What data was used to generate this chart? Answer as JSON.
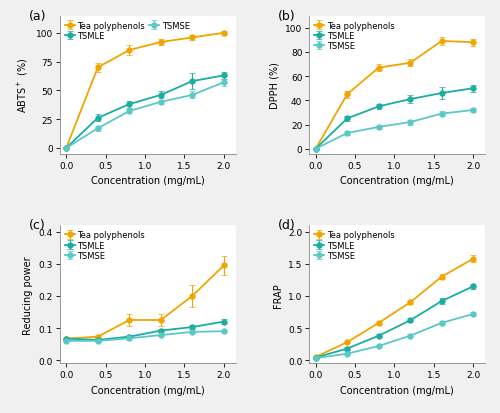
{
  "x": [
    0.0,
    0.4,
    0.8,
    1.2,
    1.6,
    2.0
  ],
  "abts_tea": [
    0,
    70,
    85,
    92,
    96,
    100
  ],
  "abts_tea_err": [
    0,
    4,
    4,
    3,
    2,
    1.5
  ],
  "abts_tsmle": [
    0,
    26,
    38,
    46,
    58,
    63
  ],
  "abts_tsmle_err": [
    0,
    3,
    3,
    3,
    7,
    3
  ],
  "abts_tsmse": [
    0,
    17,
    32,
    40,
    46,
    57
  ],
  "abts_tsmse_err": [
    0,
    2,
    2,
    2,
    3,
    3
  ],
  "abts_ylabel": "ABTS$^+$ (%)",
  "abts_ylim": [
    -5,
    115
  ],
  "abts_yticks": [
    0,
    25,
    50,
    75,
    100
  ],
  "dpph_tea": [
    0,
    45,
    67,
    71,
    89,
    88
  ],
  "dpph_tea_err": [
    0,
    3,
    3,
    3,
    3,
    3
  ],
  "dpph_tsmle": [
    0,
    25,
    35,
    41,
    46,
    50
  ],
  "dpph_tsmle_err": [
    0,
    2,
    2,
    3,
    5,
    3
  ],
  "dpph_tsmse": [
    0,
    13,
    18,
    22,
    29,
    32
  ],
  "dpph_tsmse_err": [
    0,
    2,
    2,
    2,
    2,
    2
  ],
  "dpph_ylabel": "DPPH (%)",
  "dpph_ylim": [
    -4,
    110
  ],
  "dpph_yticks": [
    0,
    20,
    40,
    60,
    80,
    100
  ],
  "rp_tea": [
    0.067,
    0.073,
    0.125,
    0.125,
    0.2,
    0.295
  ],
  "rp_tea_err": [
    0.003,
    0.005,
    0.02,
    0.02,
    0.035,
    0.03
  ],
  "rp_tsmle": [
    0.067,
    0.063,
    0.073,
    0.092,
    0.103,
    0.12
  ],
  "rp_tsmle_err": [
    0.003,
    0.003,
    0.005,
    0.005,
    0.005,
    0.007
  ],
  "rp_tsmse": [
    0.06,
    0.06,
    0.068,
    0.078,
    0.088,
    0.09
  ],
  "rp_tsmse_err": [
    0.003,
    0.003,
    0.004,
    0.004,
    0.004,
    0.005
  ],
  "rp_ylabel": "Reducing power",
  "rp_ylim": [
    -0.01,
    0.42
  ],
  "rp_yticks": [
    0.0,
    0.1,
    0.2,
    0.3,
    0.4
  ],
  "frap_tea": [
    0.05,
    0.28,
    0.58,
    0.9,
    1.3,
    1.58
  ],
  "frap_tea_err": [
    0.01,
    0.02,
    0.03,
    0.03,
    0.04,
    0.05
  ],
  "frap_tsmle": [
    0.04,
    0.18,
    0.38,
    0.62,
    0.92,
    1.15
  ],
  "frap_tsmle_err": [
    0.01,
    0.02,
    0.02,
    0.03,
    0.04,
    0.04
  ],
  "frap_tsmse": [
    0.03,
    0.1,
    0.22,
    0.38,
    0.58,
    0.72
  ],
  "frap_tsmse_err": [
    0.01,
    0.01,
    0.02,
    0.02,
    0.03,
    0.03
  ],
  "frap_ylabel": "FRAP",
  "frap_ylim": [
    -0.05,
    2.1
  ],
  "frap_yticks": [
    0.0,
    0.5,
    1.0,
    1.5,
    2.0
  ],
  "color_tea": "#F0A500",
  "color_tsmle": "#1AADA0",
  "color_tsmse": "#5BC8C8",
  "xlabel": "Concentration (mg/mL)",
  "xlim": [
    -0.08,
    2.15
  ],
  "xticks": [
    0.0,
    0.5,
    1.0,
    1.5,
    2.0
  ],
  "legend_labels": [
    "Tea polyphenols",
    "TSMLE",
    "TSMSE"
  ],
  "subplot_labels": [
    "(a)",
    "(b)",
    "(c)",
    "(d)"
  ],
  "markersize": 4,
  "linewidth": 1.3,
  "capsize": 2,
  "elinewidth": 0.8
}
